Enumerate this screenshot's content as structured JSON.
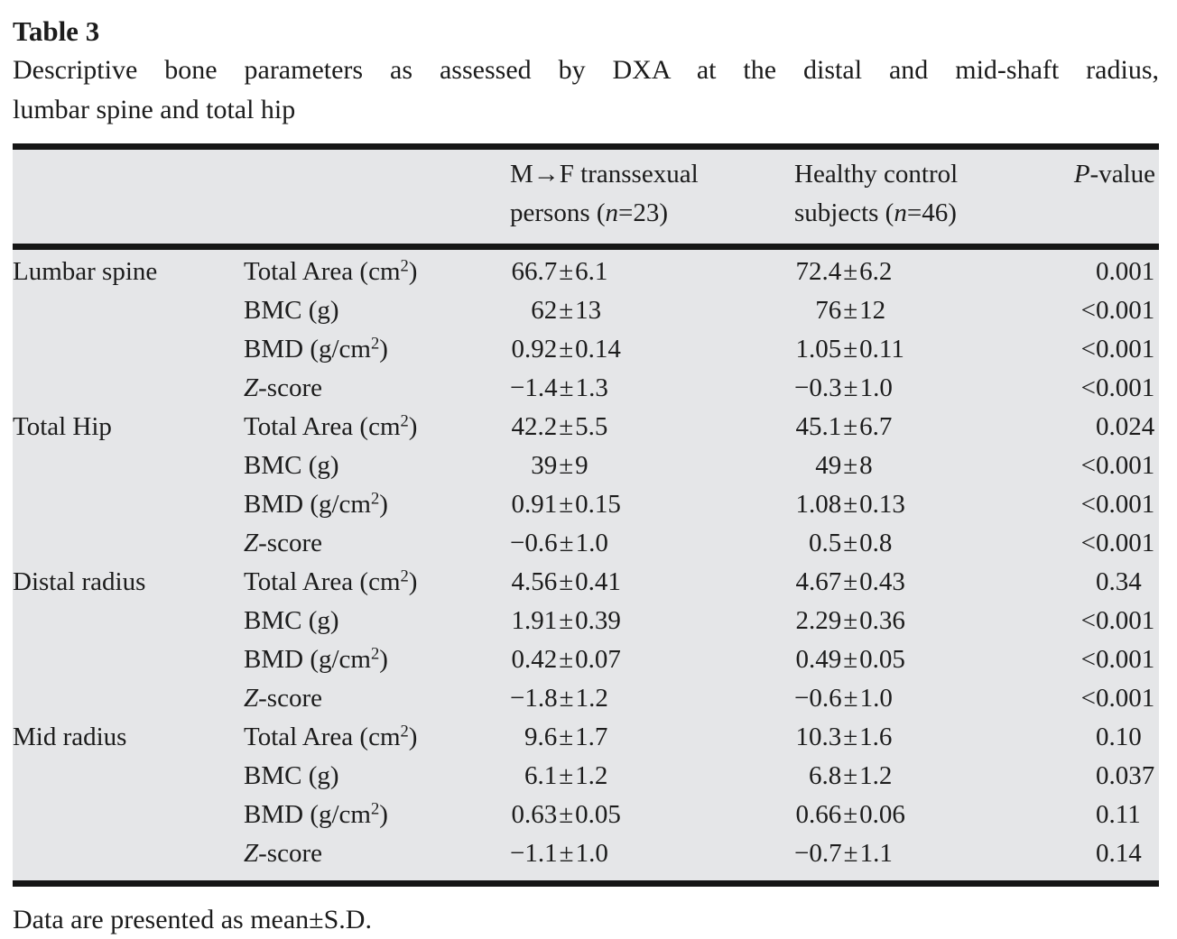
{
  "colors": {
    "table_background": "#e5e6e8",
    "rule": "#161616",
    "text": "#1c1c1c",
    "page_background": "#ffffff"
  },
  "table": {
    "title": "Table 3",
    "caption_lines": [
      "Descriptive bone parameters as assessed by DXA at the distal and mid-shaft radius,",
      "lumbar spine and total hip"
    ],
    "columns": {
      "group1": "M→F transsexual persons (n=23)",
      "group2": "Healthy control subjects (n=46)",
      "pvalue": "P-value"
    },
    "groups": [
      {
        "site": "Lumbar spine",
        "rows": [
          {
            "parameter": "Total Area (cm²)",
            "mf": "66.7±6.1",
            "control": "72.4±6.2",
            "p": "0.001"
          },
          {
            "parameter": "BMC (g)",
            "mf": "62±13",
            "control": "76±12",
            "p": "<0.001"
          },
          {
            "parameter": "BMD (g/cm²)",
            "mf": "0.92±0.14",
            "control": "1.05±0.11",
            "p": "<0.001"
          },
          {
            "parameter": "Z-score",
            "mf": "−1.4±1.3",
            "control": "−0.3±1.0",
            "p": "<0.001"
          }
        ]
      },
      {
        "site": "Total Hip",
        "rows": [
          {
            "parameter": "Total Area (cm²)",
            "mf": "42.2±5.5",
            "control": "45.1±6.7",
            "p": "0.024"
          },
          {
            "parameter": "BMC (g)",
            "mf": "39±9",
            "control": "49±8",
            "p": "<0.001"
          },
          {
            "parameter": "BMD (g/cm²)",
            "mf": "0.91±0.15",
            "control": "1.08±0.13",
            "p": "<0.001"
          },
          {
            "parameter": "Z-score",
            "mf": "−0.6±1.0",
            "control": "0.5±0.8",
            "p": "<0.001"
          }
        ]
      },
      {
        "site": "Distal radius",
        "rows": [
          {
            "parameter": "Total Area (cm²)",
            "mf": "4.56±0.41",
            "control": "4.67±0.43",
            "p": "0.34"
          },
          {
            "parameter": "BMC (g)",
            "mf": "1.91±0.39",
            "control": "2.29±0.36",
            "p": "<0.001"
          },
          {
            "parameter": "BMD (g/cm²)",
            "mf": "0.42±0.07",
            "control": "0.49±0.05",
            "p": "<0.001"
          },
          {
            "parameter": "Z-score",
            "mf": "−1.8±1.2",
            "control": "−0.6±1.0",
            "p": "<0.001"
          }
        ]
      },
      {
        "site": "Mid radius",
        "rows": [
          {
            "parameter": "Total Area (cm²)",
            "mf": "9.6±1.7",
            "control": "10.3±1.6",
            "p": "0.10"
          },
          {
            "parameter": "BMC (g)",
            "mf": "6.1±1.2",
            "control": "6.8±1.2",
            "p": "0.037"
          },
          {
            "parameter": "BMD (g/cm²)",
            "mf": "0.63±0.05",
            "control": "0.66±0.06",
            "p": "0.11"
          },
          {
            "parameter": "Z-score",
            "mf": "−1.1±1.0",
            "control": "−0.7±1.1",
            "p": "0.14"
          }
        ]
      }
    ],
    "footnote": "Data are presented as mean±S.D."
  }
}
